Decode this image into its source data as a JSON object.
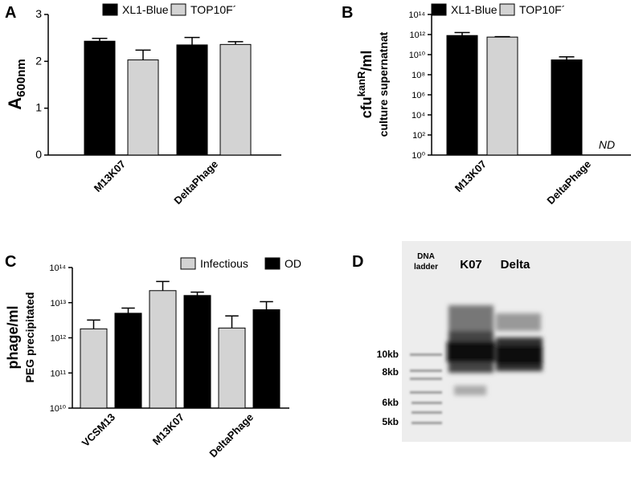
{
  "chart_data": [
    {
      "type": "bar",
      "panel": "A",
      "ylabel": [
        "A",
        "600nm"
      ],
      "categories": [
        "M13K07",
        "DeltaPhage"
      ],
      "series": [
        {
          "name": "XL1-Blue",
          "color": "#000000",
          "values": [
            2.43,
            2.35
          ],
          "errors": [
            0.06,
            0.16
          ]
        },
        {
          "name": "TOP10F´",
          "color": "#d3d3d3",
          "values": [
            2.03,
            2.36
          ],
          "errors": [
            0.21,
            0.06
          ]
        }
      ],
      "ylim": [
        0,
        3
      ],
      "yticks": [
        0,
        1,
        2,
        3
      ],
      "log": false,
      "legend": "top"
    },
    {
      "type": "bar",
      "panel": "B",
      "ylabel": [
        "cfu",
        "kanR",
        "/ml"
      ],
      "ylabel2": "culture supernatnat",
      "categories": [
        "M13K07",
        "DeltaPhage"
      ],
      "series": [
        {
          "name": "XL1-Blue",
          "color": "#000000",
          "values": [
            800000000000,
            3000000000
          ],
          "errors": [
            800000000000,
            3000000000
          ]
        },
        {
          "name": "TOP10F´",
          "color": "#d3d3d3",
          "values": [
            560000000000,
            null
          ],
          "errors": [
            60000000000,
            null
          ]
        }
      ],
      "annotation": "ND",
      "ylim": [
        1,
        100000000000000
      ],
      "log": true,
      "legend": "top",
      "yticks": [
        {
          "value": 1,
          "label": "10⁰"
        },
        {
          "value": 100,
          "label": "10²"
        },
        {
          "value": 10000,
          "label": "10⁴"
        },
        {
          "value": 1000000,
          "label": "10⁶"
        },
        {
          "value": 100000000,
          "label": "10⁸"
        },
        {
          "value": 10000000000,
          "label": "10¹⁰"
        },
        {
          "value": 1000000000000,
          "label": "10¹²"
        },
        {
          "value": 100000000000000,
          "label": "10¹⁴"
        }
      ]
    },
    {
      "type": "bar",
      "panel": "C",
      "ylabel": [
        "phage/ml"
      ],
      "ylabel2": "PEG precipitated",
      "categories": [
        "VCSM13",
        "M13K07",
        "DeltaPhage"
      ],
      "series": [
        {
          "name": "Infectious",
          "color": "#d3d3d3",
          "values": [
            1800000000000,
            22000000000000,
            1900000000000
          ],
          "errors": [
            1400000000000,
            18000000000000,
            2300000000000
          ]
        },
        {
          "name": "OD",
          "color": "#000000",
          "values": [
            5000000000000,
            16000000000000,
            6300000000000
          ],
          "errors": [
            2000000000000,
            4000000000000,
            4400000000000
          ]
        }
      ],
      "ylim": [
        10000000000,
        100000000000000
      ],
      "log": true,
      "legend": "top-right",
      "yticks": [
        {
          "value": 10000000000,
          "label": "10¹⁰"
        },
        {
          "value": 100000000000,
          "label": "10¹¹"
        },
        {
          "value": 1000000000000,
          "label": "10¹²"
        },
        {
          "value": 10000000000000,
          "label": "10¹³"
        },
        {
          "value": 100000000000000,
          "label": "10¹⁴"
        }
      ]
    }
  ],
  "gel": {
    "panel": "D",
    "lanes": [
      [
        "DNA",
        "ladder"
      ],
      "K07",
      "Delta"
    ],
    "markers": [
      "10kb",
      "8kb",
      "6kb",
      "5kb"
    ]
  }
}
